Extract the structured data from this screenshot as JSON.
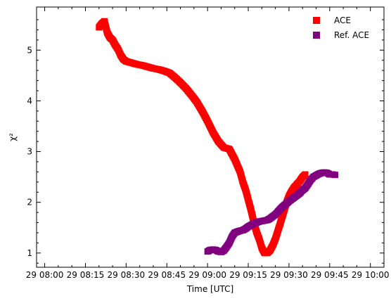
{
  "chart_data": {
    "type": "scatter",
    "xlabel": "Time [UTC]",
    "ylabel": "χ²",
    "ylim": [
      0.72,
      5.85
    ],
    "xlim": [
      "29 07:57",
      "29 10:05"
    ],
    "x_ticks": [
      "29 08:00",
      "29 08:15",
      "29 08:30",
      "29 08:45",
      "29 09:00",
      "29 09:15",
      "29 09:30",
      "29 09:45",
      "29 10:00"
    ],
    "y_ticks": [
      1,
      2,
      3,
      4,
      5
    ],
    "legend_position": "top-right",
    "series": [
      {
        "name": "ACE",
        "color": "#ff0000",
        "marker": "square",
        "points": [
          [
            "29 08:20",
            5.45
          ],
          [
            "29 08:21",
            5.52
          ],
          [
            "29 08:22",
            5.57
          ],
          [
            "29 08:23",
            5.35
          ],
          [
            "29 08:24",
            5.25
          ],
          [
            "29 08:25",
            5.2
          ],
          [
            "29 08:26",
            5.1
          ],
          [
            "29 08:27",
            5.02
          ],
          [
            "29 08:28",
            4.9
          ],
          [
            "29 08:29",
            4.82
          ],
          [
            "29 08:30",
            4.78
          ],
          [
            "29 08:32",
            4.75
          ],
          [
            "29 08:34",
            4.72
          ],
          [
            "29 08:36",
            4.7
          ],
          [
            "29 08:38",
            4.67
          ],
          [
            "29 08:40",
            4.64
          ],
          [
            "29 08:42",
            4.62
          ],
          [
            "29 08:44",
            4.59
          ],
          [
            "29 08:46",
            4.55
          ],
          [
            "29 08:48",
            4.46
          ],
          [
            "29 08:50",
            4.36
          ],
          [
            "29 08:52",
            4.25
          ],
          [
            "29 08:54",
            4.12
          ],
          [
            "29 08:56",
            3.98
          ],
          [
            "29 08:58",
            3.8
          ],
          [
            "29 09:00",
            3.6
          ],
          [
            "29 09:02",
            3.38
          ],
          [
            "29 09:04",
            3.2
          ],
          [
            "29 09:06",
            3.08
          ],
          [
            "29 09:08",
            3.05
          ],
          [
            "29 09:10",
            2.85
          ],
          [
            "29 09:12",
            2.6
          ],
          [
            "29 09:13",
            2.4
          ],
          [
            "29 09:14",
            2.25
          ],
          [
            "29 09:15",
            2.05
          ],
          [
            "29 09:16",
            1.85
          ],
          [
            "29 09:17",
            1.62
          ],
          [
            "29 09:18",
            1.42
          ],
          [
            "29 09:19",
            1.28
          ],
          [
            "29 09:20",
            1.1
          ],
          [
            "29 09:21",
            1.0
          ],
          [
            "29 09:22",
            1.0
          ],
          [
            "29 09:23",
            1.05
          ],
          [
            "29 09:24",
            1.15
          ],
          [
            "29 09:25",
            1.28
          ],
          [
            "29 09:26",
            1.45
          ],
          [
            "29 09:27",
            1.62
          ],
          [
            "29 09:28",
            1.8
          ],
          [
            "29 09:29",
            1.98
          ],
          [
            "29 09:30",
            2.12
          ],
          [
            "29 09:31",
            2.22
          ],
          [
            "29 09:32",
            2.3
          ],
          [
            "29 09:33",
            2.36
          ],
          [
            "29 09:34",
            2.42
          ],
          [
            "29 09:35",
            2.5
          ],
          [
            "29 09:36",
            2.55
          ]
        ]
      },
      {
        "name": "Ref. ACE",
        "color": "#800080",
        "marker": "square",
        "points": [
          [
            "29 09:00",
            1.03
          ],
          [
            "29 09:01",
            1.06
          ],
          [
            "29 09:02",
            1.07
          ],
          [
            "29 09:03",
            1.06
          ],
          [
            "29 09:04",
            1.03
          ],
          [
            "29 09:05",
            1.02
          ],
          [
            "29 09:06",
            1.05
          ],
          [
            "29 09:07",
            1.12
          ],
          [
            "29 09:08",
            1.2
          ],
          [
            "29 09:09",
            1.32
          ],
          [
            "29 09:10",
            1.4
          ],
          [
            "29 09:11",
            1.42
          ],
          [
            "29 09:12",
            1.44
          ],
          [
            "29 09:13",
            1.45
          ],
          [
            "29 09:14",
            1.48
          ],
          [
            "29 09:15",
            1.52
          ],
          [
            "29 09:16",
            1.55
          ],
          [
            "29 09:17",
            1.58
          ],
          [
            "29 09:18",
            1.6
          ],
          [
            "29 09:19",
            1.62
          ],
          [
            "29 09:20",
            1.63
          ],
          [
            "29 09:21",
            1.64
          ],
          [
            "29 09:22",
            1.65
          ],
          [
            "29 09:23",
            1.68
          ],
          [
            "29 09:24",
            1.72
          ],
          [
            "29 09:25",
            1.76
          ],
          [
            "29 09:26",
            1.82
          ],
          [
            "29 09:27",
            1.88
          ],
          [
            "29 09:28",
            1.93
          ],
          [
            "29 09:29",
            1.97
          ],
          [
            "29 09:30",
            2.02
          ],
          [
            "29 09:31",
            2.06
          ],
          [
            "29 09:32",
            2.1
          ],
          [
            "29 09:33",
            2.14
          ],
          [
            "29 09:34",
            2.18
          ],
          [
            "29 09:35",
            2.24
          ],
          [
            "29 09:36",
            2.28
          ],
          [
            "29 09:37",
            2.36
          ],
          [
            "29 09:38",
            2.44
          ],
          [
            "29 09:39",
            2.5
          ],
          [
            "29 09:40",
            2.53
          ],
          [
            "29 09:41",
            2.56
          ],
          [
            "29 09:42",
            2.58
          ],
          [
            "29 09:43",
            2.59
          ],
          [
            "29 09:44",
            2.58
          ],
          [
            "29 09:45",
            2.55
          ],
          [
            "29 09:46",
            2.55
          ],
          [
            "29 09:47",
            2.54
          ]
        ]
      }
    ]
  }
}
